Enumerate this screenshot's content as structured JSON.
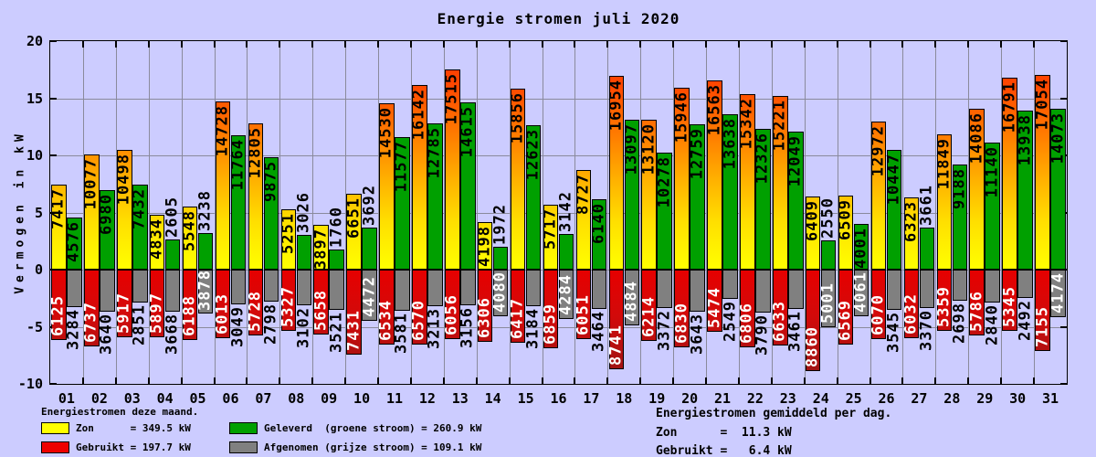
{
  "title": "Energie stromen juli 2020",
  "colors": {
    "background": "#ccccff",
    "grid": "#8a8a9c",
    "axis": "#000000",
    "zon_gradient_bottom": "#ffff00",
    "zon_gradient_top": "#ff3000",
    "geleverd": "#00a000",
    "gebruikt_gradient_top": "#e60000",
    "gebruikt_gradient_bottom": "#8f1010",
    "afgenomen": "#808080",
    "label_on_red_grey": "#ffffff",
    "label_default": "#000000"
  },
  "chart_data": {
    "type": "bar",
    "title": "Energie stromen juli 2020",
    "xlabel": "",
    "ylabel": "Vermogen in kW",
    "ylim": [
      -10,
      20
    ],
    "y_ticks": [
      20,
      15,
      10,
      5,
      0,
      -5,
      -10
    ],
    "grid": true,
    "unit_note": "bar labels are values in W; bars plotted in kW; Gebruikt and Afgenomen are drawn downward (negative)",
    "categories": [
      "01",
      "02",
      "03",
      "04",
      "05",
      "06",
      "07",
      "08",
      "09",
      "10",
      "11",
      "12",
      "13",
      "14",
      "15",
      "16",
      "17",
      "18",
      "19",
      "20",
      "21",
      "22",
      "23",
      "24",
      "25",
      "26",
      "27",
      "28",
      "29",
      "30",
      "31"
    ],
    "series": [
      {
        "name": "Zon",
        "direction": "positive",
        "style": "yellow-orange-gradient",
        "values": [
          7417,
          10077,
          10498,
          4834,
          5548,
          14728,
          12805,
          5251,
          3897,
          6651,
          14530,
          16142,
          17515,
          4198,
          15856,
          5717,
          8727,
          16954,
          13120,
          15946,
          16563,
          15342,
          15221,
          6409,
          6509,
          12972,
          6323,
          11849,
          14086,
          16791,
          17054
        ]
      },
      {
        "name": "Geleverd (groene stroom)",
        "direction": "positive",
        "style": "green",
        "values": [
          4576,
          6980,
          7432,
          2605,
          3238,
          11764,
          9875,
          3026,
          1760,
          3692,
          11577,
          12785,
          14615,
          1972,
          12623,
          3142,
          6140,
          13097,
          10278,
          12759,
          13638,
          12326,
          12049,
          2550,
          4001,
          10447,
          3661,
          9188,
          11140,
          13938,
          14073
        ]
      },
      {
        "name": "Gebruikt",
        "direction": "negative",
        "style": "red-darkred-gradient",
        "values": [
          6125,
          6737,
          5917,
          5897,
          6188,
          6013,
          5728,
          5327,
          5658,
          7431,
          6534,
          6570,
          6056,
          6306,
          6417,
          6859,
          6051,
          8741,
          6214,
          6830,
          5474,
          6806,
          6633,
          8860,
          6569,
          6070,
          6032,
          5359,
          5786,
          5345,
          7155
        ]
      },
      {
        "name": "Afgenomen (grijze stroom)",
        "direction": "negative",
        "style": "grey",
        "values": [
          3284,
          3640,
          2851,
          3668,
          3878,
          3049,
          2798,
          3102,
          3521,
          4472,
          3581,
          3213,
          3156,
          4080,
          3184,
          4284,
          3464,
          4884,
          3372,
          3643,
          2549,
          3790,
          3461,
          5001,
          4061,
          3545,
          3370,
          2698,
          2840,
          2492,
          4174
        ]
      }
    ]
  },
  "legend_left": {
    "title": "Energiestromen deze maand.",
    "items": [
      {
        "id": "zon",
        "swatch": "#ffff00",
        "label": "Zon      = 349.5 kW"
      },
      {
        "id": "gebruikt",
        "swatch": "#ee0000",
        "label": "Gebruikt = 197.7 kW"
      },
      {
        "id": "geleverd",
        "swatch": "#00a000",
        "label": "Geleverd  (groene stroom) = 260.9 kW"
      },
      {
        "id": "afgenomen",
        "swatch": "#808080",
        "label": "Afgenomen (grijze stroom) = 109.1 kW"
      }
    ]
  },
  "legend_right": {
    "title": "Energiestromen gemiddeld per dag.",
    "lines": [
      "Zon      =  11.3 kW",
      "Gebruikt =   6.4 kW"
    ]
  }
}
